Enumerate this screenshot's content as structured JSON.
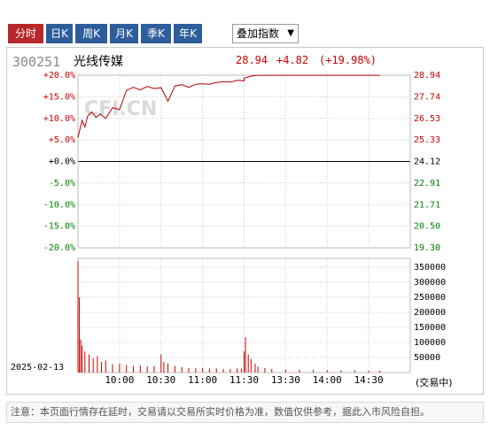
{
  "tabs": [
    {
      "label": "分时",
      "active": true
    },
    {
      "label": "日K",
      "active": false
    },
    {
      "label": "周K",
      "active": false
    },
    {
      "label": "月K",
      "active": false
    },
    {
      "label": "季K",
      "active": false
    },
    {
      "label": "年K",
      "active": false
    }
  ],
  "overlay_select": {
    "label": "叠加指数",
    "caret": "▼"
  },
  "stock": {
    "code": "300251",
    "name": "光线传媒",
    "price": "28.94",
    "change": "+4.82",
    "change_pct": "(+19.98%)"
  },
  "watermark": "CFI.CN",
  "date": "2025-02-13",
  "volume_unit": "(交易中)",
  "footer_note": "注意：本页面行情存在延时，交易请以交易所实时价格为准，数值仅供参考，据此入市风险自担。",
  "colors": {
    "up": "#cc0000",
    "down": "#008000",
    "flat": "#000000",
    "tab_active": "#b8282a",
    "tab": "#2d5d9b"
  },
  "chart_data": {
    "type": "line",
    "price_axis": {
      "pct_labels": [
        "+20.0%",
        "+15.0%",
        "+10.0%",
        "+5.0%",
        "+0.0%",
        "-5.0%",
        "-10.0%",
        "-15.0%",
        "-20.0%"
      ],
      "price_labels": [
        "28.94",
        "27.74",
        "26.53",
        "25.33",
        "24.12",
        "22.91",
        "21.71",
        "20.50",
        "19.30"
      ],
      "ylim_pct": [
        -20,
        20
      ],
      "prev_close": 24.12
    },
    "volume_axis": {
      "labels": [
        "350000",
        "300000",
        "250000",
        "200000",
        "150000",
        "100000",
        "50000"
      ],
      "ylim": [
        0,
        380000
      ]
    },
    "x_labels": [
      "10:00",
      "10:30",
      "11:00",
      "11:30",
      "13:30",
      "14:00",
      "14:30"
    ],
    "session": "09:30-11:30, 13:00-15:00",
    "price_series": {
      "x": [
        "09:30",
        "09:31",
        "09:33",
        "09:35",
        "09:37",
        "09:40",
        "09:43",
        "09:46",
        "09:50",
        "09:55",
        "10:00",
        "10:05",
        "10:10",
        "10:15",
        "10:20",
        "10:25",
        "10:30",
        "10:35",
        "10:40",
        "10:45",
        "10:50",
        "10:55",
        "11:00",
        "11:05",
        "11:10",
        "11:15",
        "11:20",
        "11:25",
        "11:30",
        "13:00",
        "13:05",
        "13:10",
        "13:15",
        "13:20",
        "13:30",
        "13:45",
        "14:00",
        "14:15",
        "14:30",
        "14:38"
      ],
      "pct": [
        5.5,
        7.0,
        9.5,
        8.0,
        10.5,
        11.5,
        10.2,
        11.0,
        10.0,
        12.5,
        12.0,
        16.5,
        17.2,
        16.6,
        17.4,
        16.9,
        17.1,
        14.0,
        17.5,
        17.8,
        17.2,
        17.9,
        18.0,
        17.9,
        18.3,
        18.5,
        18.4,
        18.8,
        18.7,
        19.3,
        19.8,
        19.98,
        19.98,
        19.98,
        19.98,
        19.98,
        19.98,
        19.98,
        19.98,
        19.98
      ]
    },
    "volume_series": {
      "x": [
        "09:30",
        "09:31",
        "09:32",
        "09:33",
        "09:35",
        "09:38",
        "09:41",
        "09:44",
        "09:47",
        "09:50",
        "09:55",
        "10:00",
        "10:05",
        "10:10",
        "10:15",
        "10:20",
        "10:25",
        "10:30",
        "10:32",
        "10:35",
        "10:40",
        "10:45",
        "10:50",
        "10:55",
        "11:00",
        "11:05",
        "11:10",
        "11:15",
        "11:20",
        "11:25",
        "11:28",
        "13:00",
        "13:01",
        "13:03",
        "13:05",
        "13:08",
        "13:10",
        "13:15",
        "13:20",
        "13:30",
        "13:40",
        "13:50",
        "14:00",
        "14:10",
        "14:20",
        "14:30",
        "14:38"
      ],
      "values": [
        370000,
        250000,
        110000,
        90000,
        70000,
        60000,
        48000,
        55000,
        35000,
        40000,
        28000,
        30000,
        25000,
        22000,
        24000,
        20000,
        22000,
        60000,
        35000,
        30000,
        22000,
        18000,
        15000,
        14000,
        15000,
        13000,
        14000,
        12000,
        12000,
        14000,
        13000,
        70000,
        118000,
        60000,
        45000,
        30000,
        20000,
        15000,
        12000,
        10000,
        9000,
        8000,
        8000,
        7000,
        7000,
        6000,
        6000
      ]
    }
  }
}
